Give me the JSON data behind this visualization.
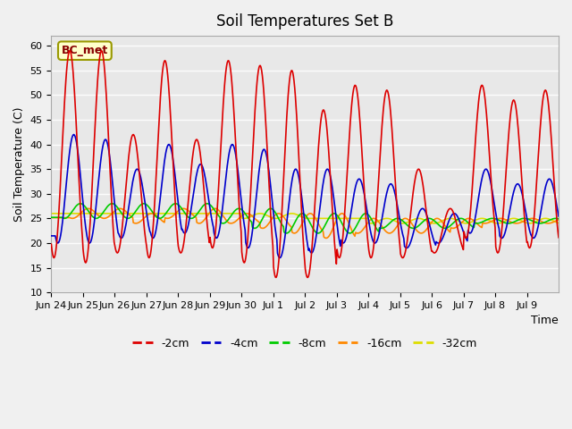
{
  "title": "Soil Temperatures Set B",
  "xlabel": "Time",
  "ylabel": "Soil Temperature (C)",
  "ylim": [
    10,
    62
  ],
  "yticks": [
    10,
    15,
    20,
    25,
    30,
    35,
    40,
    45,
    50,
    55,
    60
  ],
  "fig_bg": "#f0f0f0",
  "ax_bg": "#e8e8e8",
  "annotation": "BC_met",
  "xtick_labels": [
    "Jun 24",
    "Jun 25",
    "Jun 26",
    "Jun 27",
    "Jun 28",
    "Jun 29",
    "Jun 30",
    "Jul 1",
    "Jul 2",
    "Jul 3",
    "Jul 4",
    "Jul 5",
    "Jul 6",
    "Jul 7",
    "Jul 8",
    "Jul 9"
  ],
  "series_colors": {
    "-2cm": "#dd0000",
    "-4cm": "#0000cc",
    "-8cm": "#00cc00",
    "-16cm": "#ff8800",
    "-32cm": "#dddd00"
  },
  "peaks_2cm": [
    59,
    59,
    42,
    57,
    41,
    57,
    56,
    55,
    47,
    52,
    51,
    35,
    27,
    52,
    49,
    51
  ],
  "troughs_2cm": [
    17,
    16,
    18,
    17,
    18,
    19,
    16,
    13,
    13,
    17,
    17,
    17,
    18,
    21,
    18,
    19
  ],
  "peaks_4cm": [
    42,
    41,
    35,
    40,
    36,
    40,
    39,
    35,
    35,
    33,
    32,
    27,
    26,
    35,
    32,
    33
  ],
  "troughs_4cm": [
    20,
    20,
    21,
    21,
    22,
    21,
    19,
    17,
    18,
    20,
    20,
    19,
    20,
    22,
    21,
    21
  ],
  "peaks_8cm": [
    28,
    28,
    28,
    28,
    28,
    27,
    27,
    26,
    26,
    26,
    25,
    25,
    25,
    25,
    25,
    25
  ],
  "troughs_8cm": [
    25,
    25,
    25,
    25,
    25,
    24,
    23,
    22,
    22,
    22,
    23,
    23,
    23,
    24,
    24,
    24
  ],
  "peaks_16cm": [
    27,
    27,
    26,
    27,
    27,
    26,
    26,
    26,
    26,
    25,
    25,
    25,
    25,
    25,
    25,
    25
  ],
  "troughs_16cm": [
    25,
    25,
    24,
    25,
    24,
    24,
    23,
    22,
    21,
    22,
    22,
    22,
    23,
    24,
    24,
    24
  ],
  "peaks_32cm": [
    26,
    26,
    26,
    26,
    26,
    26,
    26,
    25,
    25,
    25,
    25,
    25,
    25,
    25,
    25,
    25
  ],
  "troughs_32cm": [
    26,
    26,
    26,
    26,
    26,
    25,
    25,
    25,
    25,
    24,
    24,
    24,
    24,
    24,
    24,
    24
  ],
  "lag_2cm": 0,
  "lag_4cm": 3,
  "lag_8cm": 8,
  "lag_16cm": 14,
  "lag_32cm": 24,
  "n_points_per_day": 48,
  "n_days": 16
}
